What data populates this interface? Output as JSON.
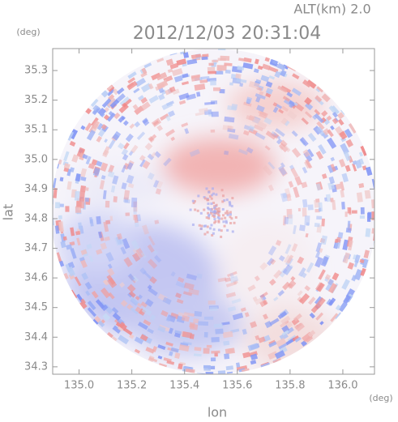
{
  "chart_data": {
    "type": "image",
    "title": "2012/12/03 20:31:04",
    "subtitle": "ALT(km)  2.0",
    "xlabel": "lon",
    "ylabel": "lat",
    "xunit": "(deg)",
    "yunit": "(deg)",
    "xlim": [
      134.9,
      136.12
    ],
    "ylim": [
      34.275,
      35.374
    ],
    "xticks": [
      {
        "value": 135,
        "label": "135.0"
      },
      135.2,
      135.4,
      135.6,
      135.8,
      {
        "value": 136,
        "label": "136.0"
      }
    ],
    "yticks": [
      34.3,
      34.4,
      34.5,
      34.6,
      34.7,
      34.8,
      34.9,
      {
        "value": 35,
        "label": "35.0"
      },
      35.1,
      35.2,
      35.3
    ]
  }
}
